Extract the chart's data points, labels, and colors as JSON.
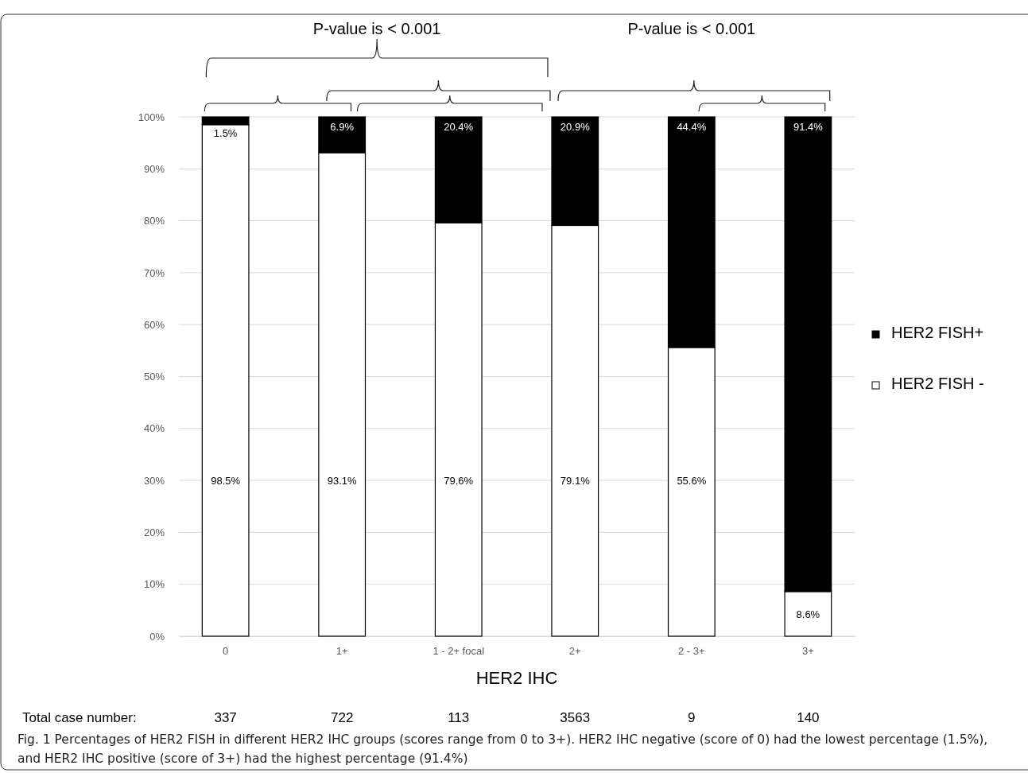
{
  "chart_data": {
    "type": "bar",
    "stacked": true,
    "xlabel": "HER2 IHC",
    "categories": [
      "0",
      "1+",
      "1 - 2+ focal",
      "2+",
      "2 - 3+",
      "3+"
    ],
    "series": [
      {
        "name": "HER2 FISH -",
        "color": "#ffffff",
        "values": [
          98.5,
          93.1,
          79.6,
          79.1,
          55.6,
          8.6
        ],
        "value_labels": [
          "98.5%",
          "93.1%",
          "79.6%",
          "79.1%",
          "55.6%",
          "8.6%"
        ]
      },
      {
        "name": "HER2 FISH+",
        "color": "#000000",
        "values": [
          1.5,
          6.9,
          20.4,
          20.9,
          44.4,
          91.4
        ],
        "value_labels": [
          "1.5%",
          "6.9%",
          "20.4%",
          "20.9%",
          "44.4%",
          "91.4%"
        ]
      }
    ],
    "ylim": [
      0,
      100
    ],
    "yticks": [
      {
        "value": 0,
        "label": "0%"
      },
      {
        "value": 10,
        "label": "10%"
      },
      {
        "value": 20,
        "label": "20%"
      },
      {
        "value": 30,
        "label": "30%"
      },
      {
        "value": 40,
        "label": "40%"
      },
      {
        "value": 50,
        "label": "50%"
      },
      {
        "value": 60,
        "label": "60%"
      },
      {
        "value": 70,
        "label": "70%"
      },
      {
        "value": 80,
        "label": "80%"
      },
      {
        "value": 90,
        "label": "90%"
      },
      {
        "value": 100,
        "label": "100%"
      }
    ],
    "grid": "y",
    "legend": "right",
    "annotations": [
      "P-value is < 0.001",
      "P-value is < 0.001",
      "Total case number:",
      "337",
      "722",
      "113",
      "3563",
      "9",
      "140",
      "Fig. 1  Percentages of HER2 FISH in different HER2 IHC groups (scores range from 0 to 3+). HER2 IHC negative (score of 0) had the lowest percentage (1.5%), and HER2 IHC positive (score of 3+) had the highest percentage (91.4%)"
    ]
  }
}
